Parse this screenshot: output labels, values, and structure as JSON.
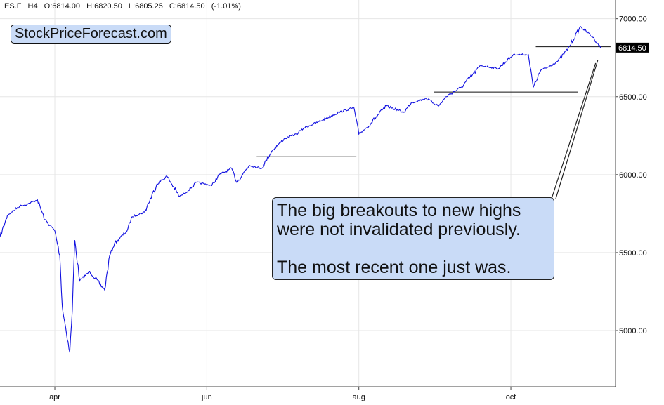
{
  "header": {
    "symbol": "ES.F",
    "interval": "H4",
    "open": "O:6814.00",
    "high": "H:6820.50",
    "low": "L:6805.25",
    "close": "C:6814.50",
    "change": "(-1.01%)"
  },
  "watermark": "StockPriceForecast.com",
  "annotation": {
    "line1": "The big breakouts to new highs",
    "line2": "were not invalidated previously.",
    "line3": "The most recent one just was."
  },
  "colors": {
    "price_line": "#1010e0",
    "annotation_bg": "#c9dbf7",
    "last_price_bg": "#000000"
  },
  "chart_data": {
    "type": "line",
    "title": "",
    "xlabel": "",
    "ylabel": "",
    "ylim": [
      4640,
      7120
    ],
    "y_ticks": [
      "7000.00",
      "6500.00",
      "6000.00",
      "5500.00",
      "5000.00"
    ],
    "y_tick_values": [
      7000,
      6500,
      6000,
      5500,
      5000
    ],
    "x_ticks": [
      "apr",
      "jun",
      "aug",
      "oct"
    ],
    "x_tick_dates": [
      "2025-04-01",
      "2025-06-01",
      "2025-08-01",
      "2025-10-01"
    ],
    "last_price_label": "6814.50",
    "last_price": 6814.5,
    "grid": true,
    "series": [
      {
        "x": [
          "2025-03-10",
          "2025-03-13",
          "2025-03-18",
          "2025-03-21",
          "2025-03-25",
          "2025-03-28",
          "2025-04-01",
          "2025-04-03",
          "2025-04-04",
          "2025-04-07",
          "2025-04-08",
          "2025-04-09",
          "2025-04-11",
          "2025-04-15",
          "2025-04-21",
          "2025-04-23",
          "2025-04-25",
          "2025-04-30",
          "2025-05-02",
          "2025-05-07",
          "2025-05-12",
          "2025-05-16",
          "2025-05-21",
          "2025-05-23",
          "2025-05-28",
          "2025-06-03",
          "2025-06-06",
          "2025-06-11",
          "2025-06-13",
          "2025-06-18",
          "2025-06-23",
          "2025-06-27",
          "2025-07-02",
          "2025-07-07",
          "2025-07-10",
          "2025-07-16",
          "2025-07-24",
          "2025-07-30",
          "2025-08-01",
          "2025-08-04",
          "2025-08-12",
          "2025-08-19",
          "2025-08-22",
          "2025-08-28",
          "2025-09-02",
          "2025-09-05",
          "2025-09-11",
          "2025-09-19",
          "2025-09-26",
          "2025-10-02",
          "2025-10-08",
          "2025-10-10",
          "2025-10-13",
          "2025-10-16",
          "2025-10-20",
          "2025-10-24",
          "2025-10-29",
          "2025-11-03",
          "2025-11-06"
        ],
        "values": [
          5600,
          5740,
          5800,
          5810,
          5840,
          5710,
          5640,
          5480,
          5150,
          4860,
          5130,
          5580,
          5320,
          5380,
          5260,
          5480,
          5560,
          5640,
          5730,
          5760,
          5940,
          5990,
          5860,
          5880,
          5950,
          5930,
          6000,
          6040,
          5950,
          6060,
          6040,
          6150,
          6230,
          6260,
          6300,
          6340,
          6400,
          6430,
          6260,
          6300,
          6440,
          6400,
          6460,
          6490,
          6440,
          6500,
          6560,
          6700,
          6680,
          6770,
          6770,
          6560,
          6670,
          6690,
          6730,
          6810,
          6950,
          6880,
          6814
        ]
      }
    ],
    "support_lines": [
      {
        "x_start": "2025-06-21",
        "x_end": "2025-07-31",
        "y": 6115
      },
      {
        "x_start": "2025-08-31",
        "x_end": "2025-10-28",
        "y": 6530
      },
      {
        "x_start": "2025-10-11",
        "x_end": "2025-11-10",
        "y": 6820
      }
    ]
  }
}
